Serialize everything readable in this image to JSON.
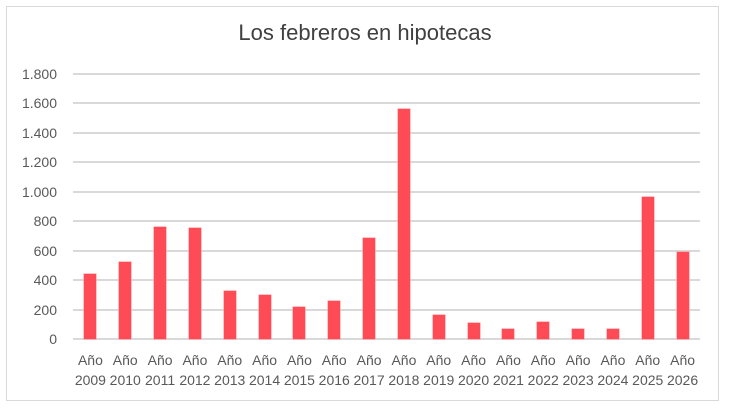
{
  "chart_data": {
    "type": "bar",
    "title": "Los febreros en hipotecas",
    "xlabel": "",
    "ylabel": "",
    "categories": [
      "Año 2009",
      "Año 2010",
      "Año 2011",
      "Año 2012",
      "Año 2013",
      "Año 2014",
      "Año 2015",
      "Año 2016",
      "Año 2017",
      "Año 2018",
      "Año 2019",
      "Año 2020",
      "Año 2021",
      "Año 2022",
      "Año 2023",
      "Año 2024",
      "Año 2025",
      "Año 2026"
    ],
    "category_prefix": "Año",
    "years": [
      "2009",
      "2010",
      "2011",
      "2012",
      "2013",
      "2014",
      "2015",
      "2016",
      "2017",
      "2018",
      "2019",
      "2020",
      "2021",
      "2022",
      "2023",
      "2024",
      "2025",
      "2026"
    ],
    "values": [
      441,
      522,
      764,
      751,
      325,
      298,
      218,
      259,
      689,
      1560,
      165,
      106,
      66,
      118,
      66,
      70,
      962,
      589
    ],
    "ylim": [
      0,
      1800
    ],
    "yticks": [
      0,
      200,
      400,
      600,
      800,
      1000,
      1200,
      1400,
      1600,
      1800
    ],
    "ytick_labels": [
      "0",
      "200",
      "400",
      "600",
      "800",
      "1.000",
      "1.200",
      "1.400",
      "1.600",
      "1.800"
    ],
    "grid": true,
    "legend": null,
    "bar_color": "#ff4b55",
    "grid_color": "#d9d9d9"
  }
}
